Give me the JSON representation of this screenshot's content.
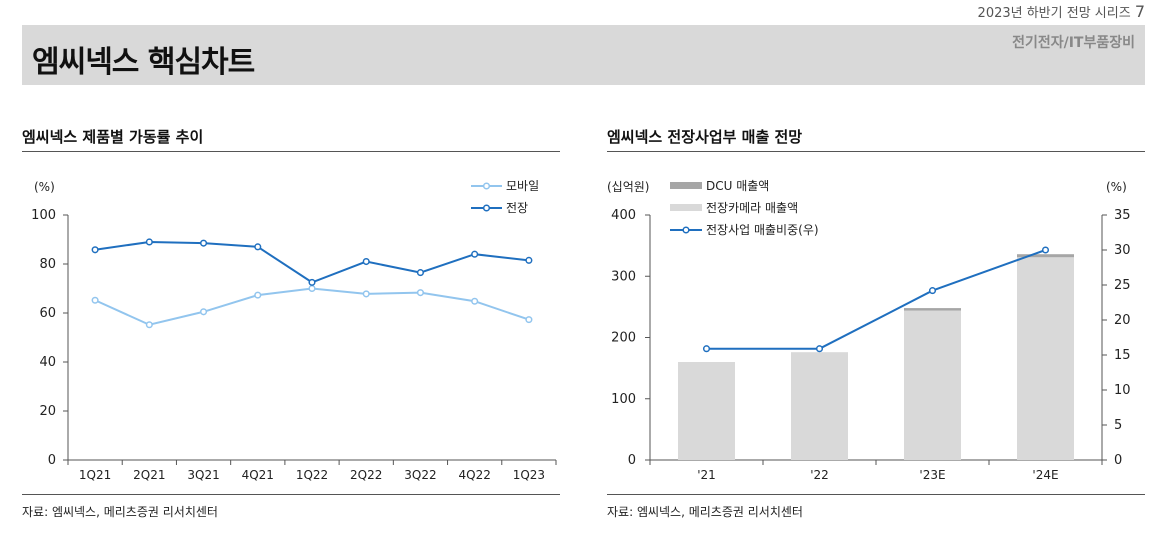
{
  "header": {
    "series_note_text": "2023년 하반기 전망 시리즈",
    "series_note_num": "7",
    "title": "엠씨넥스 핵심차트",
    "sector": "전기전자/IT부품장비"
  },
  "colors": {
    "band": "#d9d9d9",
    "mobile_line": "#92c5ee",
    "auto_line": "#1f6fbf",
    "dcu_bar": "#a6a6a6",
    "camera_bar": "#d9d9d9"
  },
  "chart_data": [
    {
      "type": "line",
      "title": "엠씨넥스 제품별 가동률 추이",
      "unit_label": "(%)",
      "categories": [
        "1Q21",
        "2Q21",
        "3Q21",
        "4Q21",
        "1Q22",
        "2Q22",
        "3Q22",
        "4Q22",
        "1Q23"
      ],
      "series": [
        {
          "name": "모바일",
          "values": [
            65.2,
            55.2,
            60.5,
            67.3,
            70.0,
            67.8,
            68.3,
            64.8,
            57.3
          ]
        },
        {
          "name": "전장",
          "values": [
            85.8,
            89.0,
            88.5,
            87.0,
            72.5,
            81.0,
            76.5,
            84.0,
            81.5
          ]
        }
      ],
      "ylim": [
        0,
        100
      ],
      "yticks": [
        0,
        20,
        40,
        60,
        80,
        100
      ],
      "legend": "top-right",
      "source": "자료: 엠씨넥스, 메리츠증권 리서치센터"
    },
    {
      "type": "bar",
      "title": "엠씨넥스 전장사업부 매출 전망",
      "left_unit_label": "(십억원)",
      "right_unit_label": "(%)",
      "categories": [
        "'21",
        "'22",
        "'23E",
        "'24E"
      ],
      "series": [
        {
          "name": "DCU 매출액",
          "values": [
            0,
            0,
            4,
            5
          ]
        },
        {
          "name": "전장카메라 매출액",
          "values": [
            160,
            176,
            244,
            331
          ]
        },
        {
          "name": "전장사업 매출비중(우)",
          "values": [
            15.9,
            15.9,
            24.2,
            30.0
          ],
          "axis": "right"
        }
      ],
      "ylim": [
        0,
        400
      ],
      "yticks": [
        0,
        100,
        200,
        300,
        400
      ],
      "y2lim": [
        0,
        35
      ],
      "y2ticks": [
        0,
        5,
        10,
        15,
        20,
        25,
        30,
        35
      ],
      "legend": "top-left",
      "source": "자료: 엠씨넥스, 메리츠증권 리서치센터"
    }
  ]
}
